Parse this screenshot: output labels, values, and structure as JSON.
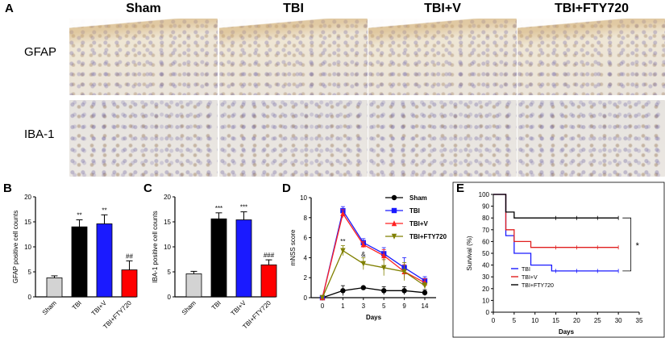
{
  "panel_a": {
    "letter": "A",
    "columns": [
      "Sham",
      "TBI",
      "TBI+V",
      "TBI+FTY720"
    ],
    "rows": [
      "GFAP",
      "IBA-1"
    ]
  },
  "chart_data": [
    {
      "panel": "B",
      "type": "bar",
      "ylabel": "GFAP positive cell counts",
      "categories": [
        "Sham",
        "TBI",
        "TBI+V",
        "TBI+FTY720"
      ],
      "values": [
        3.8,
        14.0,
        14.6,
        5.4
      ],
      "errors": [
        0.4,
        1.4,
        1.8,
        1.8
      ],
      "colors": [
        "#d3d3d3",
        "#000000",
        "#1a1aff",
        "#ff0000"
      ],
      "annotations": [
        "",
        "**",
        "**",
        "##"
      ],
      "ylim": [
        0,
        20
      ],
      "yticks": [
        0,
        5,
        10,
        15,
        20
      ]
    },
    {
      "panel": "C",
      "type": "bar",
      "ylabel": "IBA-1 positive cell counts",
      "categories": [
        "Sham",
        "TBI",
        "TBI+V",
        "TBI+FTY720"
      ],
      "values": [
        4.6,
        15.6,
        15.4,
        6.4
      ],
      "errors": [
        0.5,
        1.2,
        1.6,
        1.0
      ],
      "colors": [
        "#d3d3d3",
        "#000000",
        "#1a1aff",
        "#ff0000"
      ],
      "annotations": [
        "",
        "***",
        "***",
        "###"
      ],
      "ylim": [
        0,
        20
      ],
      "yticks": [
        0,
        5,
        10,
        15,
        20
      ]
    },
    {
      "panel": "D",
      "type": "line",
      "xlabel": "Days",
      "ylabel": "mNSS score",
      "x": [
        "0",
        "1",
        "3",
        "5",
        "9",
        "14"
      ],
      "ylim": [
        0,
        10
      ],
      "yticks": [
        0,
        2,
        4,
        6,
        8,
        10
      ],
      "series": [
        {
          "name": "Sham",
          "color": "#000000",
          "marker": "circle",
          "values": [
            0,
            0.7,
            1.0,
            0.7,
            0.7,
            0.5
          ],
          "errors": [
            0,
            0.5,
            0,
            0.4,
            0.4,
            0.3
          ]
        },
        {
          "name": "TBI",
          "color": "#1a1aff",
          "marker": "square",
          "values": [
            0,
            8.7,
            5.5,
            4.4,
            3.0,
            1.7
          ],
          "errors": [
            0,
            0.4,
            0.4,
            0.6,
            1.0,
            0.4
          ]
        },
        {
          "name": "TBI+V",
          "color": "#ff2020",
          "marker": "triangle",
          "values": [
            0,
            8.4,
            5.3,
            4.2,
            2.6,
            1.5
          ],
          "errors": [
            0,
            0.4,
            0.3,
            0.6,
            0.7,
            0.4
          ]
        },
        {
          "name": "TBI+FTY720",
          "color": "#808000",
          "marker": "triangle-down",
          "values": [
            0,
            4.7,
            3.4,
            3.0,
            2.6,
            1.2
          ],
          "errors": [
            0,
            0.5,
            0.6,
            0.8,
            0.9,
            0.3
          ]
        }
      ],
      "annotations": [
        {
          "x": "1",
          "text": "**"
        },
        {
          "x": "3",
          "text": "&"
        }
      ]
    },
    {
      "panel": "E",
      "type": "line",
      "xlabel": "Days",
      "ylabel": "Survival (%)",
      "xlim": [
        0,
        35
      ],
      "xticks": [
        0,
        5,
        10,
        15,
        20,
        25,
        30,
        35
      ],
      "ylim": [
        0,
        100
      ],
      "yticks": [
        0,
        10,
        20,
        30,
        40,
        50,
        60,
        70,
        80,
        90,
        100
      ],
      "series": [
        {
          "name": "TBI",
          "color": "#1a1aff",
          "steps": [
            [
              2,
              100
            ],
            [
              3,
              65
            ],
            [
              5,
              50
            ],
            [
              9,
              40
            ],
            [
              14,
              35
            ],
            [
              30,
              35
            ]
          ]
        },
        {
          "name": "TBI+V",
          "color": "#e02020",
          "steps": [
            [
              2,
              100
            ],
            [
              3,
              70
            ],
            [
              5,
              60
            ],
            [
              9,
              55
            ],
            [
              30,
              55
            ]
          ]
        },
        {
          "name": "TBI+FTY720",
          "color": "#000000",
          "steps": [
            [
              2,
              100
            ],
            [
              3,
              85
            ],
            [
              5,
              80
            ],
            [
              30,
              80
            ]
          ]
        }
      ],
      "significance": "*"
    }
  ]
}
